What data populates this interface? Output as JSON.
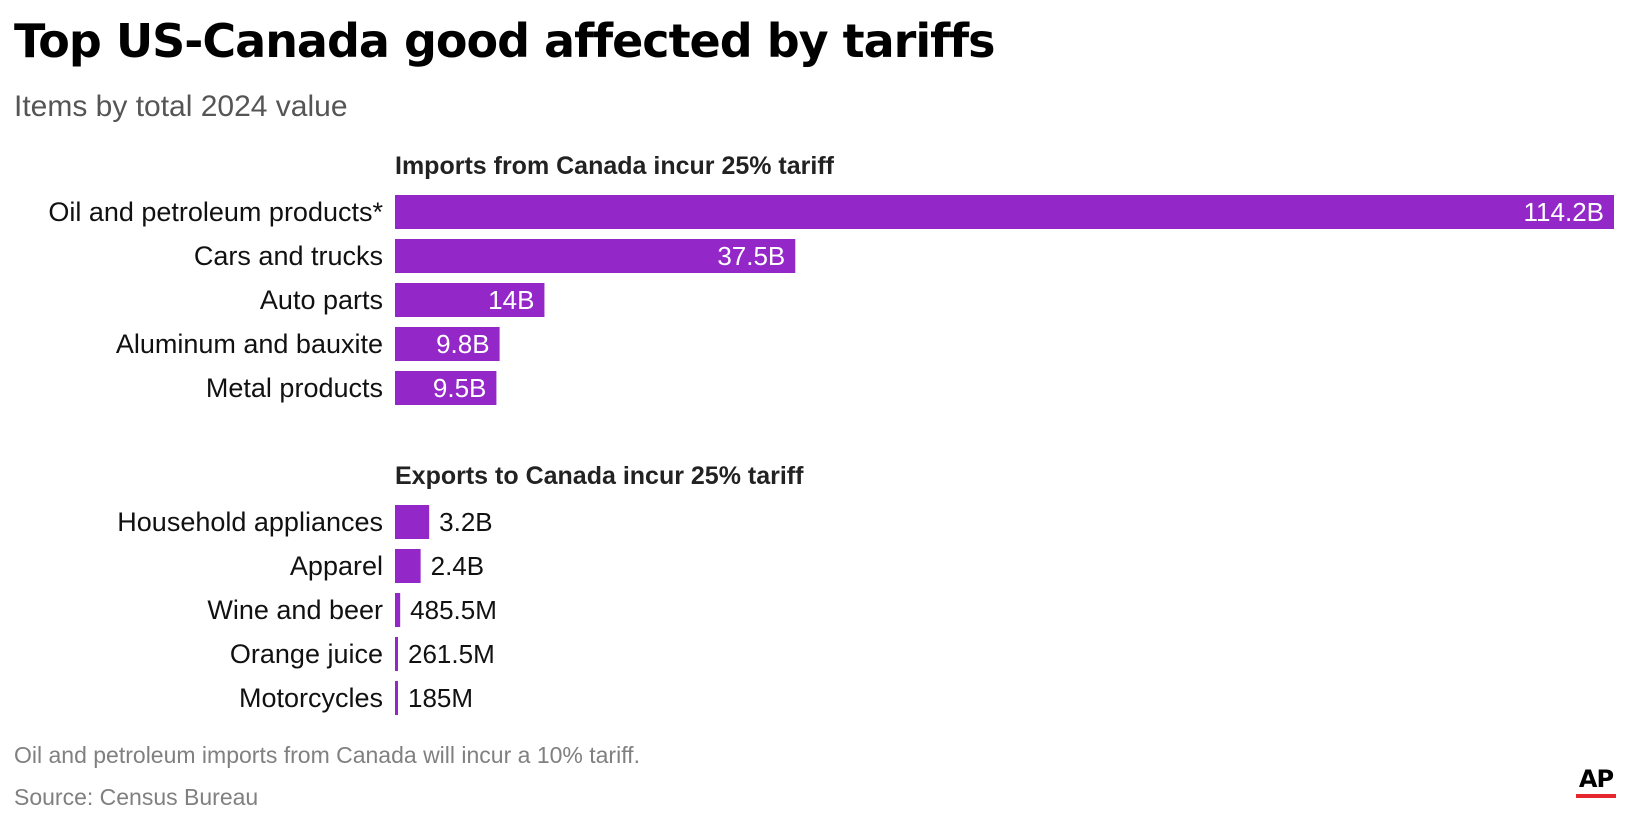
{
  "title": "Top US-Canada good affected by tariffs",
  "subtitle": "Items by total 2024 value",
  "chart_data": {
    "type": "bar",
    "orientation": "horizontal",
    "unit": "B",
    "bar_color": "#9327c8",
    "groups": [
      {
        "name": "Imports from Canada incur 25% tariff",
        "label_position": "inside",
        "categories": [
          "Oil and petroleum products*",
          "Cars and trucks",
          "Auto parts",
          "Aluminum and bauxite",
          "Metal products"
        ],
        "values": [
          114.2,
          37.5,
          14,
          9.8,
          9.5
        ],
        "labels": [
          "114.2B",
          "37.5B",
          "14B",
          "9.8B",
          "9.5B"
        ]
      },
      {
        "name": "Exports to Canada incur 25% tariff",
        "label_position": "outside",
        "categories": [
          "Household appliances",
          "Apparel",
          "Wine and beer",
          "Orange juice",
          "Motorcycles"
        ],
        "values": [
          3.2,
          2.4,
          0.4855,
          0.2615,
          0.185
        ],
        "labels": [
          "3.2B",
          "2.4B",
          "485.5M",
          "261.5M",
          "185M"
        ]
      }
    ],
    "xlim": [
      0,
      114.2
    ]
  },
  "note": "Oil and petroleum imports from Canada will incur a 10% tariff.",
  "source": "Source: Census Bureau",
  "logo": {
    "text": "AP",
    "accent": "#e5262d"
  }
}
